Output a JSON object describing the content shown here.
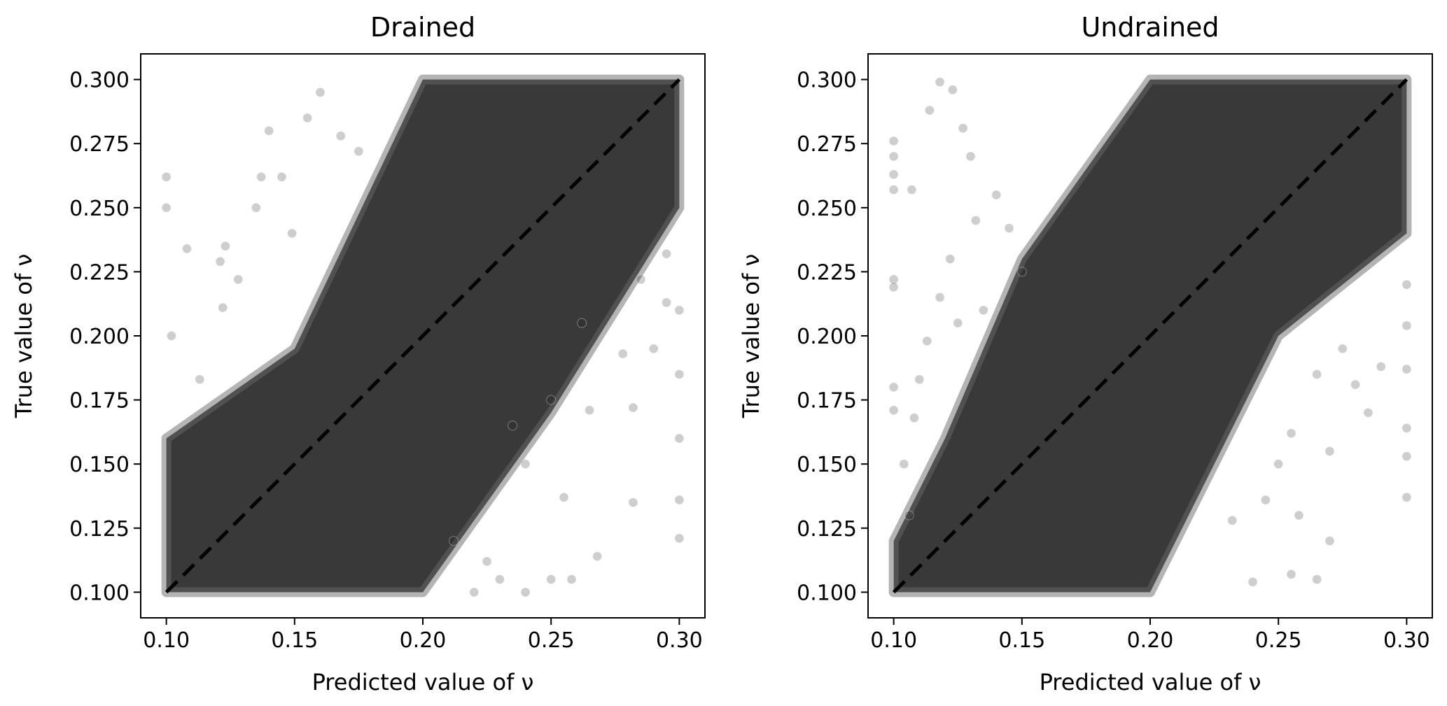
{
  "chart_data": [
    {
      "type": "scatter",
      "title": "Drained",
      "xlabel": "Predicted value of ν",
      "ylabel": "True value of ν",
      "xlim": [
        0.09,
        0.31
      ],
      "ylim": [
        0.09,
        0.31
      ],
      "xticks": [
        "0.10",
        "0.15",
        "0.20",
        "0.25",
        "0.30"
      ],
      "yticks": [
        "0.100",
        "0.125",
        "0.150",
        "0.175",
        "0.200",
        "0.225",
        "0.250",
        "0.275",
        "0.300"
      ],
      "grid": false,
      "point_color": "#1f1f1f",
      "reference_line": {
        "style": "dashed",
        "color": "#000000",
        "from": [
          0.1,
          0.1
        ],
        "to": [
          0.3,
          0.3
        ]
      },
      "density_band": {
        "x": [
          0.1,
          0.15,
          0.2,
          0.25,
          0.3
        ],
        "y_low": [
          0.1,
          0.1,
          0.1,
          0.17,
          0.25
        ],
        "y_high": [
          0.16,
          0.195,
          0.3,
          0.3,
          0.3
        ]
      },
      "points": [
        {
          "x": 0.1,
          "y": 0.262
        },
        {
          "x": 0.1,
          "y": 0.25
        },
        {
          "x": 0.108,
          "y": 0.234
        },
        {
          "x": 0.121,
          "y": 0.229
        },
        {
          "x": 0.123,
          "y": 0.235
        },
        {
          "x": 0.102,
          "y": 0.2
        },
        {
          "x": 0.122,
          "y": 0.211
        },
        {
          "x": 0.14,
          "y": 0.28
        },
        {
          "x": 0.137,
          "y": 0.262
        },
        {
          "x": 0.155,
          "y": 0.285
        },
        {
          "x": 0.16,
          "y": 0.295
        },
        {
          "x": 0.149,
          "y": 0.24
        },
        {
          "x": 0.135,
          "y": 0.25
        },
        {
          "x": 0.128,
          "y": 0.222
        },
        {
          "x": 0.113,
          "y": 0.183
        },
        {
          "x": 0.145,
          "y": 0.262
        },
        {
          "x": 0.168,
          "y": 0.278
        },
        {
          "x": 0.175,
          "y": 0.272
        },
        {
          "x": 0.212,
          "y": 0.12
        },
        {
          "x": 0.23,
          "y": 0.105
        },
        {
          "x": 0.24,
          "y": 0.1
        },
        {
          "x": 0.25,
          "y": 0.105
        },
        {
          "x": 0.258,
          "y": 0.105
        },
        {
          "x": 0.268,
          "y": 0.114
        },
        {
          "x": 0.265,
          "y": 0.171
        },
        {
          "x": 0.282,
          "y": 0.172
        },
        {
          "x": 0.3,
          "y": 0.121
        },
        {
          "x": 0.3,
          "y": 0.136
        },
        {
          "x": 0.3,
          "y": 0.16
        },
        {
          "x": 0.3,
          "y": 0.185
        },
        {
          "x": 0.282,
          "y": 0.135
        },
        {
          "x": 0.255,
          "y": 0.137
        },
        {
          "x": 0.24,
          "y": 0.15
        },
        {
          "x": 0.235,
          "y": 0.165
        },
        {
          "x": 0.25,
          "y": 0.175
        },
        {
          "x": 0.262,
          "y": 0.205
        },
        {
          "x": 0.278,
          "y": 0.193
        },
        {
          "x": 0.29,
          "y": 0.195
        },
        {
          "x": 0.295,
          "y": 0.232
        },
        {
          "x": 0.285,
          "y": 0.222
        },
        {
          "x": 0.295,
          "y": 0.213
        },
        {
          "x": 0.3,
          "y": 0.21
        },
        {
          "x": 0.225,
          "y": 0.112
        },
        {
          "x": 0.22,
          "y": 0.1
        }
      ]
    },
    {
      "type": "scatter",
      "title": "Undrained",
      "xlabel": "Predicted value of ν",
      "ylabel": "True value of ν",
      "xlim": [
        0.09,
        0.31
      ],
      "ylim": [
        0.09,
        0.31
      ],
      "xticks": [
        "0.10",
        "0.15",
        "0.20",
        "0.25",
        "0.30"
      ],
      "yticks": [
        "0.100",
        "0.125",
        "0.150",
        "0.175",
        "0.200",
        "0.225",
        "0.250",
        "0.275",
        "0.300"
      ],
      "grid": false,
      "point_color": "#1f1f1f",
      "reference_line": {
        "style": "dashed",
        "color": "#000000",
        "from": [
          0.1,
          0.1
        ],
        "to": [
          0.3,
          0.3
        ]
      },
      "density_band": {
        "x": [
          0.1,
          0.12,
          0.15,
          0.2,
          0.25,
          0.3
        ],
        "y_low": [
          0.1,
          0.1,
          0.1,
          0.1,
          0.2,
          0.24
        ],
        "y_high": [
          0.12,
          0.16,
          0.23,
          0.3,
          0.3,
          0.3
        ]
      },
      "points": [
        {
          "x": 0.1,
          "y": 0.276
        },
        {
          "x": 0.1,
          "y": 0.263
        },
        {
          "x": 0.1,
          "y": 0.257
        },
        {
          "x": 0.1,
          "y": 0.27
        },
        {
          "x": 0.1,
          "y": 0.222
        },
        {
          "x": 0.1,
          "y": 0.219
        },
        {
          "x": 0.1,
          "y": 0.18
        },
        {
          "x": 0.1,
          "y": 0.171
        },
        {
          "x": 0.107,
          "y": 0.257
        },
        {
          "x": 0.114,
          "y": 0.288
        },
        {
          "x": 0.118,
          "y": 0.299
        },
        {
          "x": 0.123,
          "y": 0.296
        },
        {
          "x": 0.13,
          "y": 0.27
        },
        {
          "x": 0.127,
          "y": 0.281
        },
        {
          "x": 0.132,
          "y": 0.245
        },
        {
          "x": 0.122,
          "y": 0.23
        },
        {
          "x": 0.113,
          "y": 0.198
        },
        {
          "x": 0.118,
          "y": 0.215
        },
        {
          "x": 0.125,
          "y": 0.205
        },
        {
          "x": 0.14,
          "y": 0.255
        },
        {
          "x": 0.135,
          "y": 0.21
        },
        {
          "x": 0.145,
          "y": 0.242
        },
        {
          "x": 0.15,
          "y": 0.225
        },
        {
          "x": 0.11,
          "y": 0.183
        },
        {
          "x": 0.108,
          "y": 0.168
        },
        {
          "x": 0.104,
          "y": 0.15
        },
        {
          "x": 0.106,
          "y": 0.13
        },
        {
          "x": 0.24,
          "y": 0.104
        },
        {
          "x": 0.255,
          "y": 0.107
        },
        {
          "x": 0.265,
          "y": 0.105
        },
        {
          "x": 0.27,
          "y": 0.12
        },
        {
          "x": 0.258,
          "y": 0.13
        },
        {
          "x": 0.245,
          "y": 0.136
        },
        {
          "x": 0.25,
          "y": 0.15
        },
        {
          "x": 0.27,
          "y": 0.155
        },
        {
          "x": 0.285,
          "y": 0.17
        },
        {
          "x": 0.3,
          "y": 0.137
        },
        {
          "x": 0.3,
          "y": 0.153
        },
        {
          "x": 0.3,
          "y": 0.164
        },
        {
          "x": 0.3,
          "y": 0.187
        },
        {
          "x": 0.3,
          "y": 0.204
        },
        {
          "x": 0.3,
          "y": 0.22
        },
        {
          "x": 0.275,
          "y": 0.195
        },
        {
          "x": 0.29,
          "y": 0.188
        },
        {
          "x": 0.28,
          "y": 0.181
        },
        {
          "x": 0.265,
          "y": 0.185
        },
        {
          "x": 0.255,
          "y": 0.162
        },
        {
          "x": 0.232,
          "y": 0.128
        }
      ]
    }
  ]
}
